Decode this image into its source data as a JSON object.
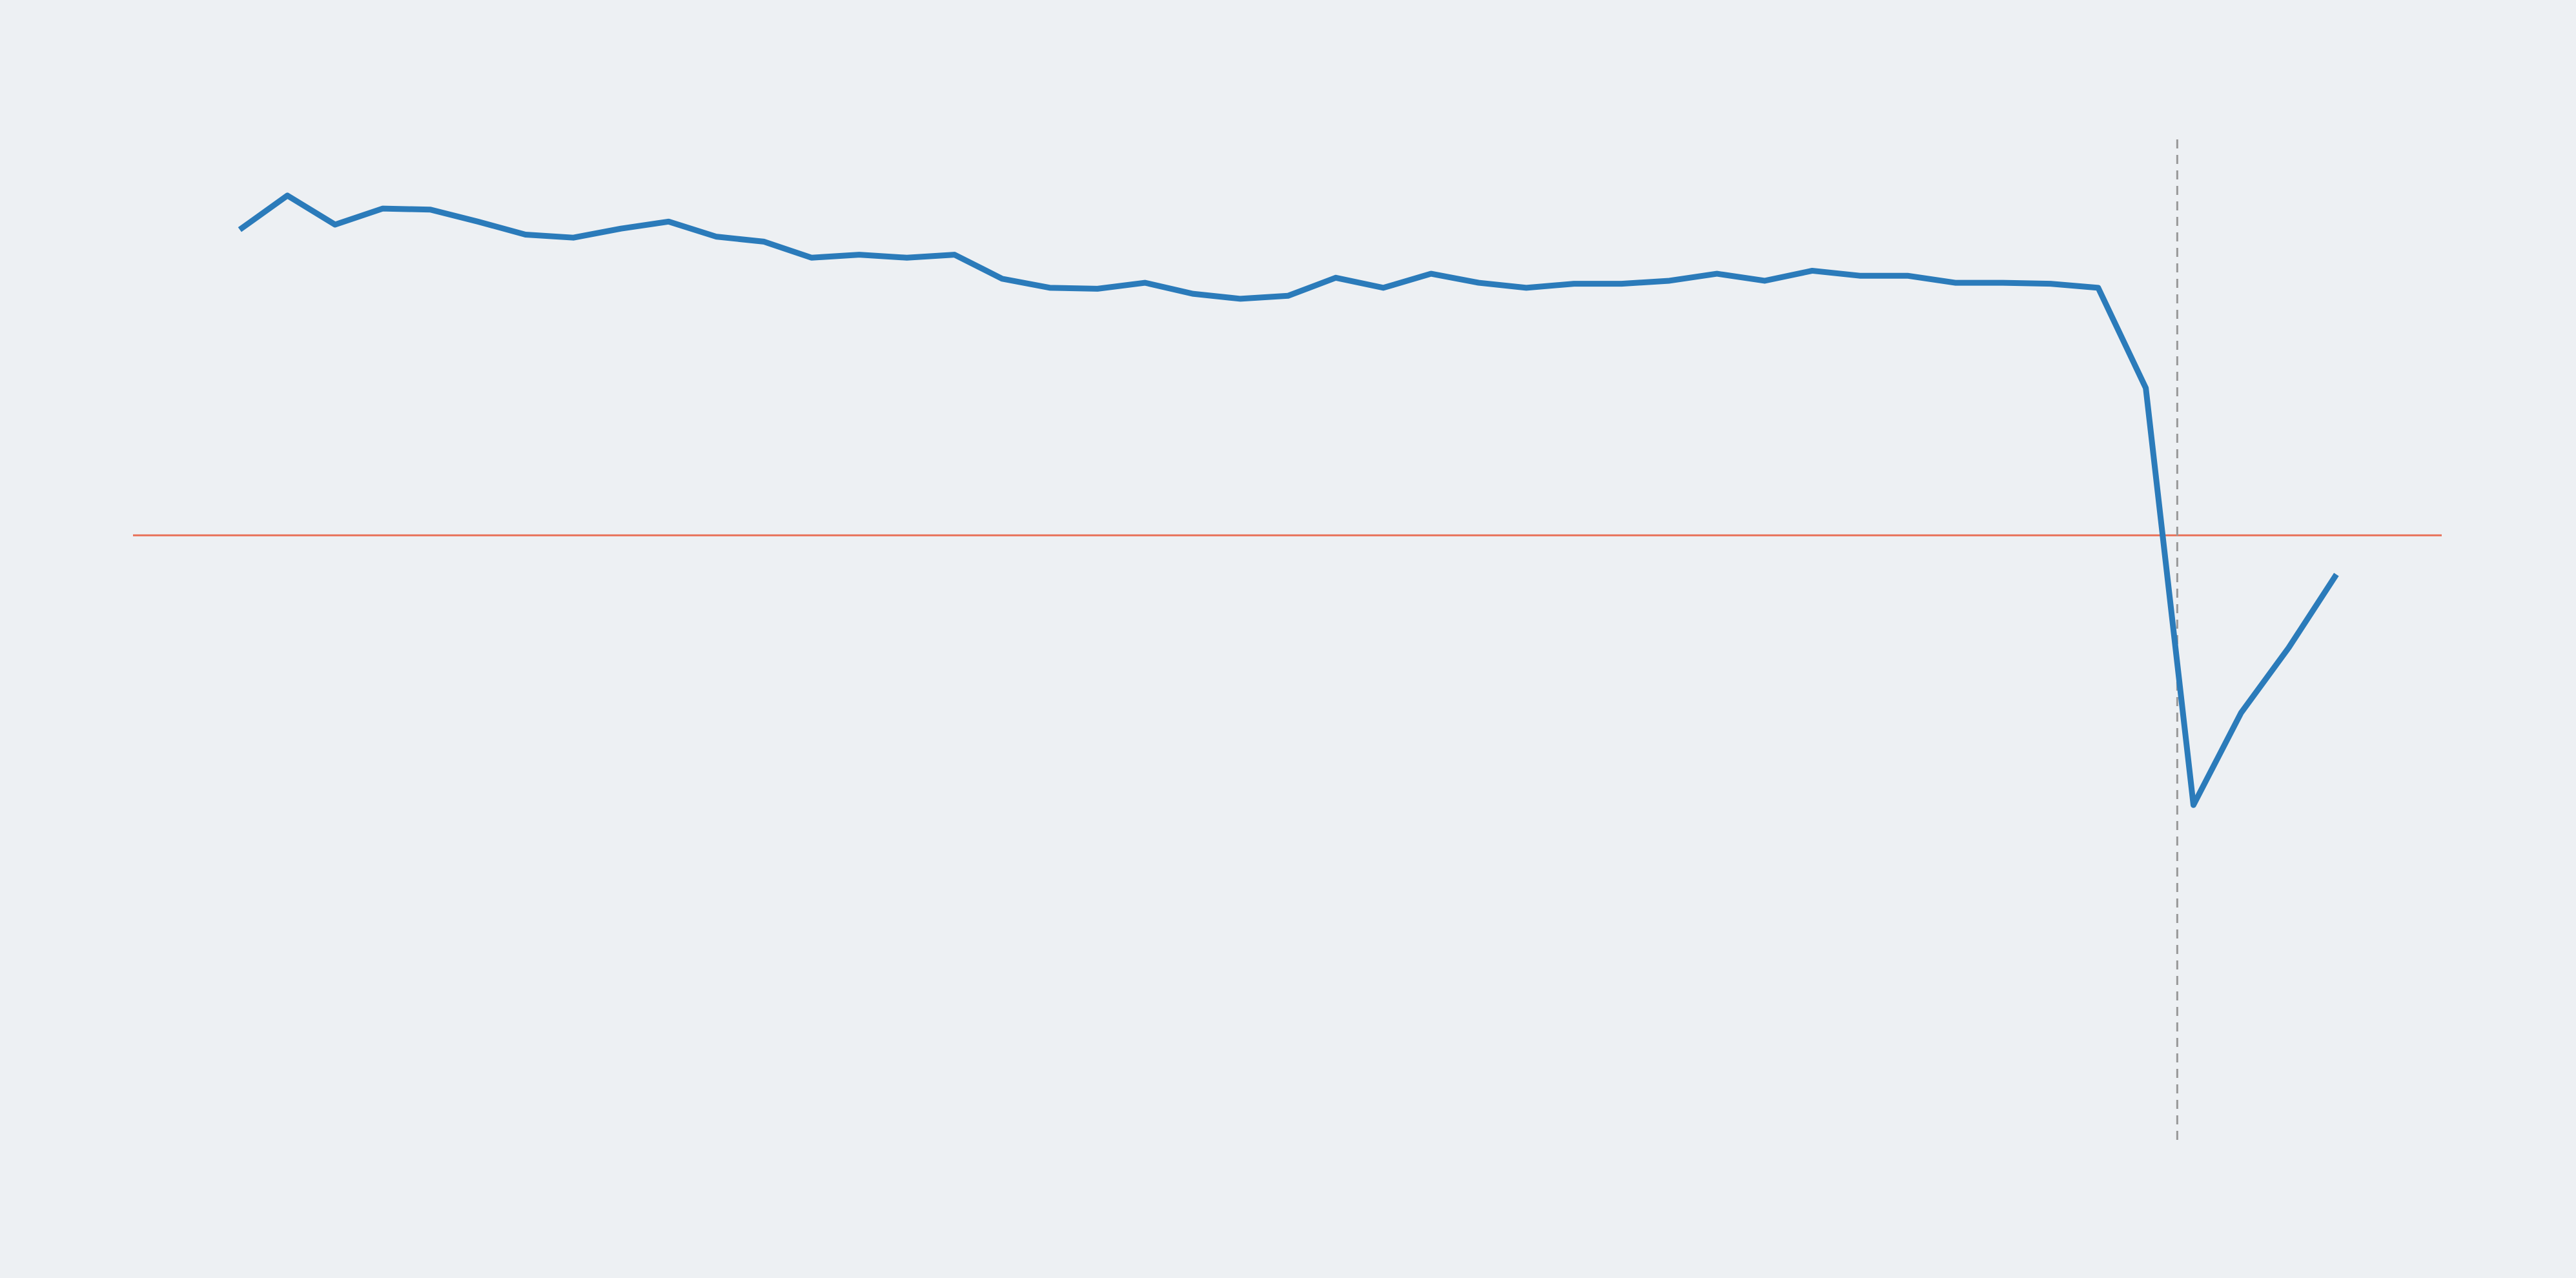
{
  "chart_data": {
    "type": "line",
    "x": [
      0,
      1,
      2,
      3,
      4,
      5,
      6,
      7,
      8,
      9,
      10,
      11,
      12,
      13,
      14,
      15,
      16,
      17,
      18,
      19,
      20,
      21,
      22,
      23,
      24,
      25,
      26,
      27,
      28,
      29,
      30,
      31,
      32,
      33,
      34,
      35,
      36,
      37,
      38,
      39,
      40,
      41,
      42,
      43,
      44
    ],
    "series": [
      {
        "color": "#2b7bba",
        "values": [
          91.0,
          94.4,
          91.5,
          93.1,
          93.0,
          91.8,
          90.5,
          90.2,
          91.1,
          91.8,
          90.3,
          89.8,
          88.2,
          88.5,
          88.2,
          88.5,
          86.1,
          85.2,
          85.1,
          85.7,
          84.6,
          84.1,
          84.4,
          86.2,
          85.2,
          86.6,
          85.7,
          85.2,
          85.6,
          85.6,
          85.9,
          86.6,
          85.9,
          86.9,
          86.4,
          86.4,
          85.7,
          85.7,
          85.6,
          85.2,
          75.2,
          33.6,
          42.8,
          49.3,
          56.6
        ]
      }
    ],
    "xlim": [
      -2.24,
      46.21
    ],
    "ylim": [
      0,
      100
    ],
    "grid": false,
    "hline": {
      "value": 60.5,
      "color": "#e8735a"
    },
    "vline": {
      "value": 40.66,
      "color": "#999999",
      "dashed": true
    },
    "background": "#edf0f3"
  }
}
